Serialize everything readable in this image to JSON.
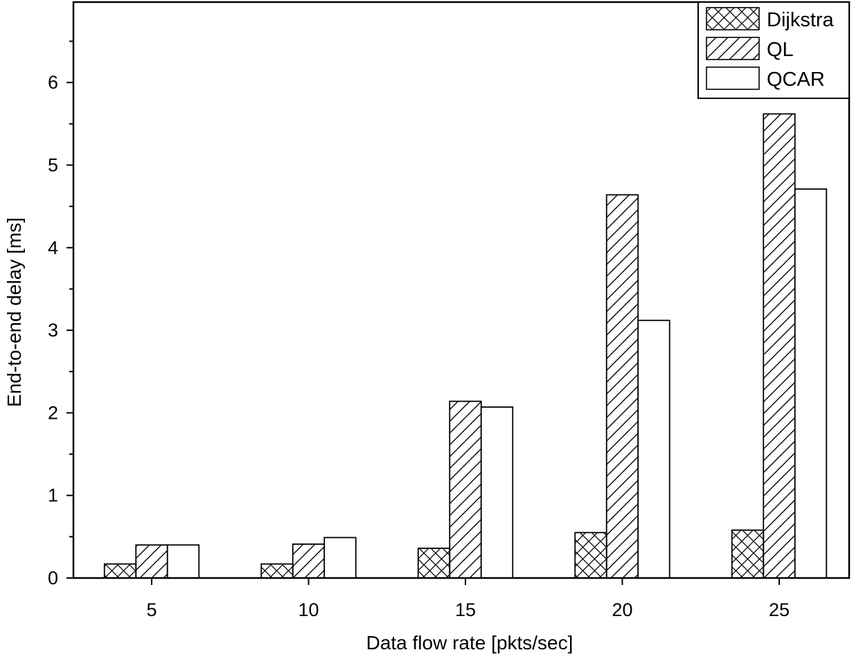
{
  "chart_data": {
    "type": "bar",
    "title": "",
    "xlabel": "Data flow rate [pkts/sec]",
    "ylabel": "End-to-end delay [ms]",
    "categories": [
      "5",
      "10",
      "15",
      "20",
      "25"
    ],
    "ylim": [
      0,
      7
    ],
    "yticks": [
      "0",
      "1",
      "2",
      "3",
      "4",
      "5",
      "6"
    ],
    "grid": false,
    "legend_position": "top-right",
    "series": [
      {
        "name": "Dijkstra",
        "pattern": "crosshatch",
        "color": "#000000",
        "values": [
          0.17,
          0.17,
          0.36,
          0.55,
          0.58
        ]
      },
      {
        "name": "QL",
        "pattern": "diagonal",
        "color": "#000000",
        "values": [
          0.4,
          0.41,
          2.14,
          4.64,
          5.62
        ]
      },
      {
        "name": "QCAR",
        "pattern": "none",
        "color": "#000000",
        "values": [
          0.4,
          0.49,
          2.07,
          3.12,
          4.71
        ]
      }
    ]
  }
}
